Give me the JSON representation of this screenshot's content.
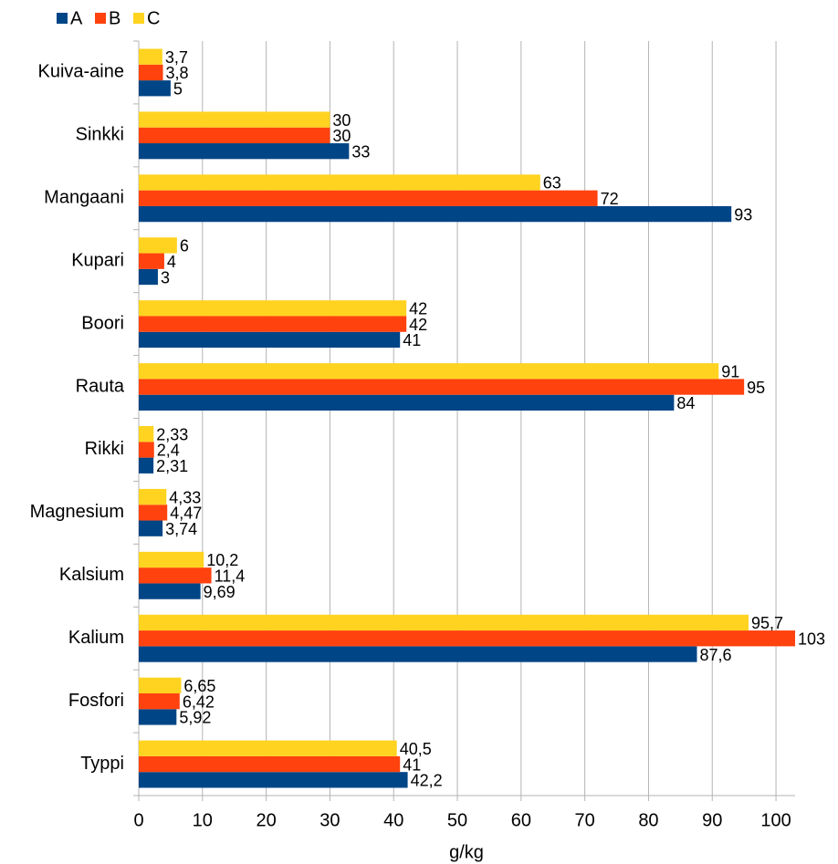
{
  "chart_data": {
    "type": "hbar",
    "categories": [
      "Kuiva-aine",
      "Sinkki",
      "Mangaani",
      "Kupari",
      "Boori",
      "Rauta",
      "Rikki",
      "Magnesium",
      "Kalsium",
      "Kalium",
      "Fosfori",
      "Typpi"
    ],
    "series": [
      {
        "name": "A",
        "color": "#004586",
        "values": [
          5,
          33,
          93,
          3,
          41,
          84,
          2.31,
          3.74,
          9.69,
          87.6,
          5.92,
          42.2
        ],
        "value_labels": [
          "5",
          "33",
          "93",
          "3",
          "41",
          "84",
          "2,31",
          "3,74",
          "9,69",
          "87,6",
          "5,92",
          "42,2"
        ]
      },
      {
        "name": "B",
        "color": "#ff420e",
        "values": [
          3.8,
          30,
          72,
          4,
          42,
          95,
          2.4,
          4.47,
          11.4,
          103,
          6.42,
          41
        ],
        "value_labels": [
          "3,8",
          "30",
          "72",
          "4",
          "42",
          "95",
          "2,4",
          "4,47",
          "11,4",
          "103",
          "6,42",
          "41"
        ]
      },
      {
        "name": "C",
        "color": "#ffd320",
        "values": [
          3.7,
          30,
          63,
          6,
          42,
          91,
          2.33,
          4.33,
          10.2,
          95.7,
          6.65,
          40.5
        ],
        "value_labels": [
          "3,7",
          "30",
          "63",
          "6",
          "42",
          "91",
          "2,33",
          "4,33",
          "10,2",
          "95,7",
          "6,65",
          "40,5"
        ]
      }
    ],
    "x_label": "g/kg",
    "xlim": [
      0,
      103
    ],
    "xticks": [
      0,
      10,
      20,
      30,
      40,
      50,
      60,
      70,
      80,
      90,
      100
    ],
    "grid": true,
    "legend": "top-left"
  }
}
